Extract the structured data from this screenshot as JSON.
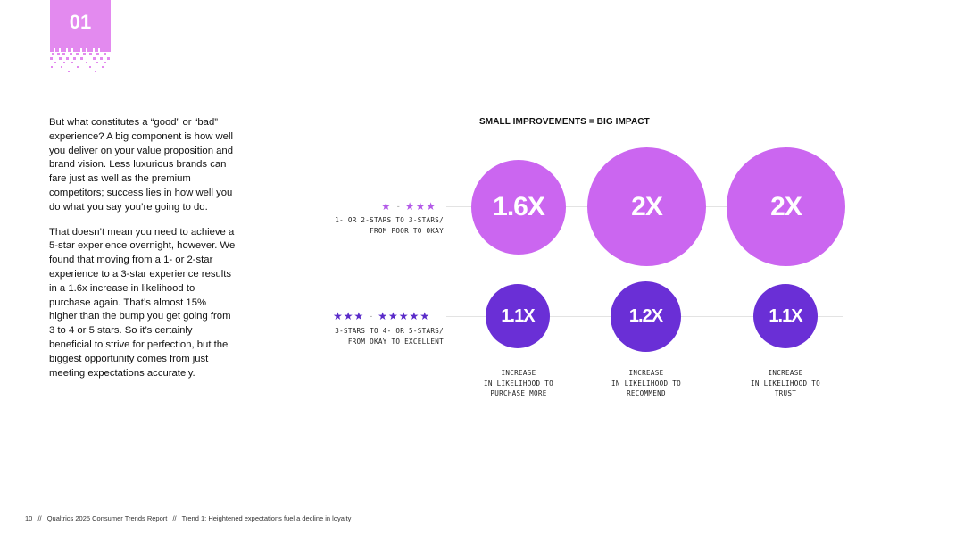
{
  "badge": {
    "number": "01"
  },
  "body_text": {
    "paragraphs": [
      "But what constitutes a “good” or “bad” experience? A big component is how well you deliver on your value proposition and brand vision. Less luxurious brands can fare just as well as the premium competitors;  success lies in how well you do what you say you’re going to do.",
      "That doesn’t mean you need to achieve a 5-star experience overnight, however. We found that moving from a 1- or 2-star experience to a 3-star experience results in a 1.6x increase in likelihood to purchase again. That’s almost 15% higher than the bump you get going from 3 to 4 or 5 stars. So it’s certainly beneficial to strive for perfection, but the biggest opportunity comes from just meeting expectations accurately."
    ]
  },
  "infographic": {
    "title": "SMALL IMPROVEMENTS = BIG IMPACT",
    "rows": [
      {
        "stars_from": "★",
        "stars_to": "★★★",
        "label_line1": "1- OR 2-STARS TO 3-STARS/",
        "label_line2": "FROM POOR TO OKAY",
        "values": [
          "1.6X",
          "2X",
          "2X"
        ]
      },
      {
        "stars_from": "★★★",
        "stars_to": "★★★★★",
        "label_line1": "3-STARS TO 4- OR 5-STARS/",
        "label_line2": "FROM OKAY TO EXCELLENT",
        "values": [
          "1.1X",
          "1.2X",
          "1.1X"
        ]
      }
    ],
    "columns": [
      {
        "line1": "INCREASE",
        "line2": "IN LIKELIHOOD TO",
        "line3": "PURCHASE MORE"
      },
      {
        "line1": "INCREASE",
        "line2": "IN LIKELIHOOD TO",
        "line3": "RECOMMEND"
      },
      {
        "line1": "INCREASE",
        "line2": "IN LIKELIHOOD TO",
        "line3": "TRUST"
      }
    ]
  },
  "footer": {
    "page": "10",
    "separator": "//",
    "report": "Qualtrics 2025 Consumer Trends Report",
    "trend": "Trend 1: Heightened expectations fuel a decline in loyalty"
  },
  "colors": {
    "badge": "#e38aef",
    "big_circle": "#cb66f0",
    "small_circle": "#6a2fd6",
    "row1_stars": "#b35ae8",
    "row2_stars": "#5a2bc9"
  }
}
